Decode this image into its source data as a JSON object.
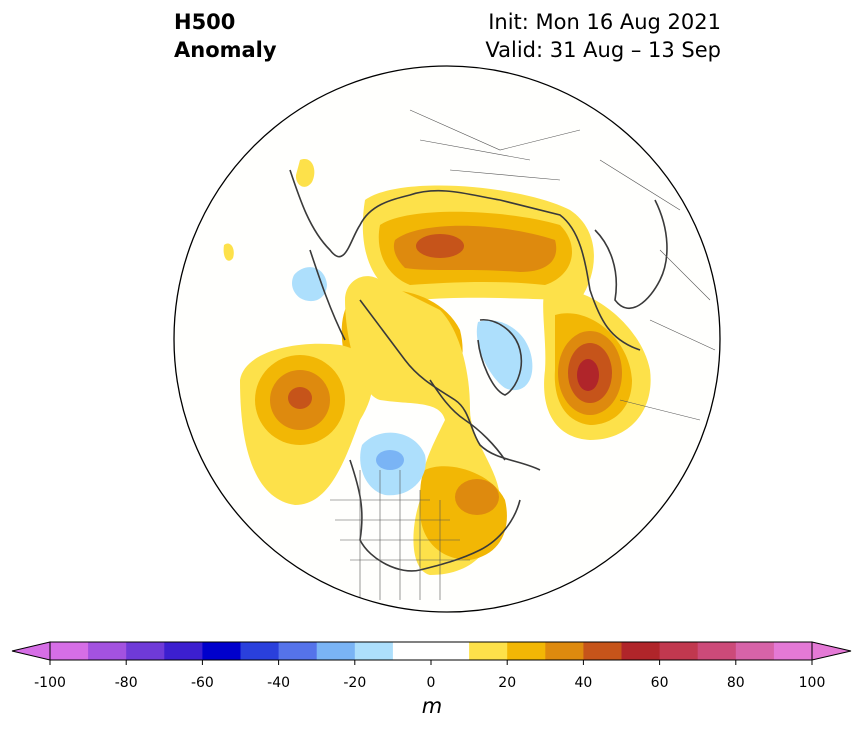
{
  "header": {
    "title_line1": "H500",
    "title_line2": "Anomaly",
    "init_text": "Init: Mon 16 Aug 2021",
    "valid_text": "Valid: 31 Aug – 13 Sep"
  },
  "map": {
    "projection": "north-polar-stereographic",
    "boundary": "circle",
    "background": "#fffffd",
    "coastline_color": "#3a3a3a",
    "anomaly_centers": [
      {
        "region": "northern Eurasia / Siberia",
        "sign": "positive",
        "peak_m": 45
      },
      {
        "region": "Europe / Scandinavia",
        "sign": "positive",
        "peak_m": 55
      },
      {
        "region": "Alaska / Bering region",
        "sign": "positive",
        "peak_m": 55
      },
      {
        "region": "western Pacific",
        "sign": "positive",
        "peak_m": 45
      },
      {
        "region": "eastern North America",
        "sign": "positive",
        "peak_m": 35
      },
      {
        "region": "Greenland",
        "sign": "negative",
        "peak_m": -15
      },
      {
        "region": "western Canada / Pacific Northwest",
        "sign": "negative",
        "peak_m": -25
      },
      {
        "region": "eastern Asia",
        "sign": "negative",
        "peak_m": -15
      }
    ]
  },
  "colorbar": {
    "unit": "m",
    "tick_labels": [
      "-100",
      "-80",
      "-60",
      "-40",
      "-20",
      "0",
      "20",
      "40",
      "60",
      "80",
      "100"
    ],
    "bins": [
      {
        "lo": -100,
        "hi": -90,
        "color": "#d66ee6"
      },
      {
        "lo": -90,
        "hi": -80,
        "color": "#a352e0"
      },
      {
        "lo": -80,
        "hi": -70,
        "color": "#6f3ad8"
      },
      {
        "lo": -70,
        "hi": -60,
        "color": "#3c1fd0"
      },
      {
        "lo": -60,
        "hi": -50,
        "color": "#0000cc"
      },
      {
        "lo": -50,
        "hi": -40,
        "color": "#2a40dc"
      },
      {
        "lo": -40,
        "hi": -30,
        "color": "#5573ea"
      },
      {
        "lo": -30,
        "hi": -20,
        "color": "#7ab4f5"
      },
      {
        "lo": -20,
        "hi": -10,
        "color": "#addffc"
      },
      {
        "lo": -10,
        "hi": 0,
        "color": "#ffffff"
      },
      {
        "lo": 0,
        "hi": 10,
        "color": "#ffffff"
      },
      {
        "lo": 10,
        "hi": 20,
        "color": "#fde14a"
      },
      {
        "lo": 20,
        "hi": 30,
        "color": "#f2b705"
      },
      {
        "lo": 30,
        "hi": 40,
        "color": "#de8a0e"
      },
      {
        "lo": 40,
        "hi": 50,
        "color": "#c6541a"
      },
      {
        "lo": 50,
        "hi": 60,
        "color": "#b0252a"
      },
      {
        "lo": 60,
        "hi": 70,
        "color": "#c1384f"
      },
      {
        "lo": 70,
        "hi": 80,
        "color": "#cc4a79"
      },
      {
        "lo": 80,
        "hi": 90,
        "color": "#d763a8"
      },
      {
        "lo": 90,
        "hi": 100,
        "color": "#e479d6"
      }
    ],
    "under_color": "#d66ee6",
    "over_color": "#e479d6"
  }
}
